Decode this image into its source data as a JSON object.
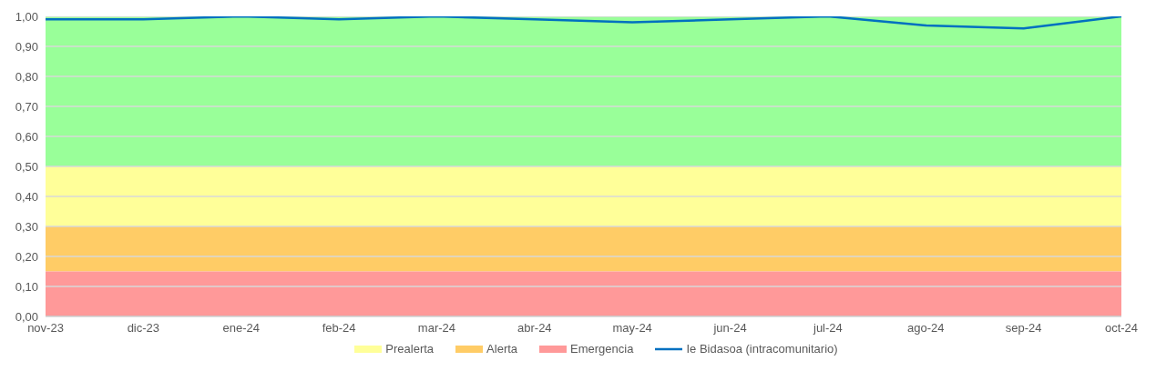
{
  "chart_data": {
    "type": "line",
    "categories": [
      "nov-23",
      "dic-23",
      "ene-24",
      "feb-24",
      "mar-24",
      "abr-24",
      "may-24",
      "jun-24",
      "jul-24",
      "ago-24",
      "sep-24",
      "oct-24"
    ],
    "series": [
      {
        "name": "Ie Bidasoa (intracomunitario)",
        "color": "#0070c0",
        "values": [
          0.99,
          0.99,
          1.0,
          0.99,
          1.0,
          0.99,
          0.98,
          0.99,
          1.0,
          0.97,
          0.96,
          1.0
        ]
      }
    ],
    "ylim": [
      0,
      1
    ],
    "yticks": [
      {
        "value": 0,
        "label": "0,00"
      },
      {
        "value": 0.1,
        "label": "0,10"
      },
      {
        "value": 0.2,
        "label": "0,20"
      },
      {
        "value": 0.3,
        "label": "0,30"
      },
      {
        "value": 0.4,
        "label": "0,40"
      },
      {
        "value": 0.5,
        "label": "0,50"
      },
      {
        "value": 0.6,
        "label": "0,60"
      },
      {
        "value": 0.7,
        "label": "0,70"
      },
      {
        "value": 0.8,
        "label": "0,80"
      },
      {
        "value": 0.9,
        "label": "0,90"
      },
      {
        "value": 1,
        "label": "1,00"
      }
    ],
    "bands": [
      {
        "axis": "y",
        "from": 0.5,
        "to": 1,
        "label": null,
        "color": "#99ff99"
      },
      {
        "axis": "y",
        "from": 0.3,
        "to": 0.5,
        "label": "Prealerta",
        "color": "#ffff99"
      },
      {
        "axis": "y",
        "from": 0.15,
        "to": 0.3,
        "label": "Alerta",
        "color": "#ffcc66"
      },
      {
        "axis": "y",
        "from": 0,
        "to": 0.15,
        "label": "Emergencia",
        "color": "#ff9999"
      }
    ],
    "grid": "y",
    "legend": "bottom",
    "marker": "none",
    "line_style": "solid"
  }
}
